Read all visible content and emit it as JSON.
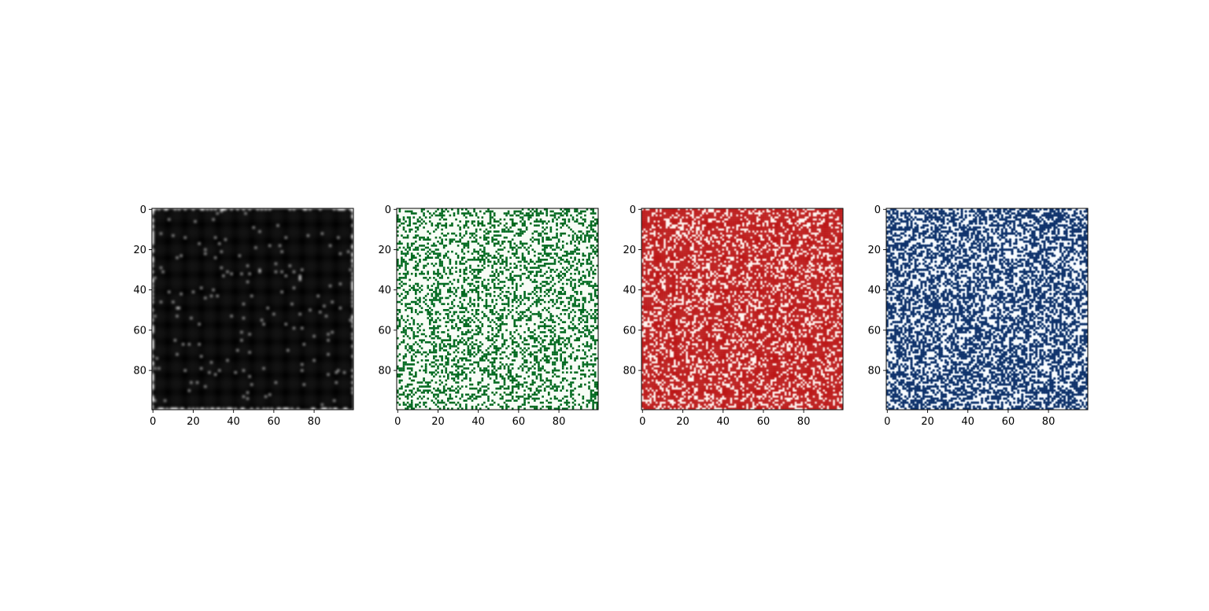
{
  "chart_data": [
    {
      "type": "heatmap",
      "title": "",
      "xlabel": "",
      "ylabel": "",
      "xlim": [
        0,
        99
      ],
      "ylim": [
        99,
        0
      ],
      "grid": false,
      "colormap": "Greys",
      "interpolation": "smooth",
      "density": 0.75,
      "colors": {
        "low": "#ffffff",
        "high": "#000000"
      },
      "x_ticks": [
        0,
        20,
        40,
        60,
        80
      ],
      "y_ticks": [
        0,
        20,
        40,
        60,
        80
      ]
    },
    {
      "type": "heatmap",
      "title": "",
      "xlabel": "",
      "ylabel": "",
      "xlim": [
        0,
        99
      ],
      "ylim": [
        99,
        0
      ],
      "grid": false,
      "colormap": "Greens",
      "interpolation": "nearest",
      "density": 0.33,
      "colors": {
        "low": "#f7fcf5",
        "high": "#00691f"
      },
      "x_ticks": [
        0,
        20,
        40,
        60,
        80
      ],
      "y_ticks": [
        0,
        20,
        40,
        60,
        80
      ]
    },
    {
      "type": "heatmap",
      "title": "",
      "xlabel": "",
      "ylabel": "",
      "xlim": [
        0,
        99
      ],
      "ylim": [
        99,
        0
      ],
      "grid": false,
      "colormap": "Reds",
      "interpolation": "smooth",
      "density": 0.72,
      "colors": {
        "low": "#fff5f0",
        "high": "#bb1419"
      },
      "x_ticks": [
        0,
        20,
        40,
        60,
        80
      ],
      "y_ticks": [
        0,
        20,
        40,
        60,
        80
      ]
    },
    {
      "type": "heatmap",
      "title": "",
      "xlabel": "",
      "ylabel": "",
      "xlim": [
        0,
        99
      ],
      "ylim": [
        99,
        0
      ],
      "grid": false,
      "colormap": "Blues",
      "interpolation": "rounded",
      "density": 0.5,
      "colors": {
        "low": "#f7fbff",
        "high": "#08306b"
      },
      "x_ticks": [
        0,
        20,
        40,
        60,
        80
      ],
      "y_ticks": [
        0,
        20,
        40,
        60,
        80
      ]
    }
  ]
}
